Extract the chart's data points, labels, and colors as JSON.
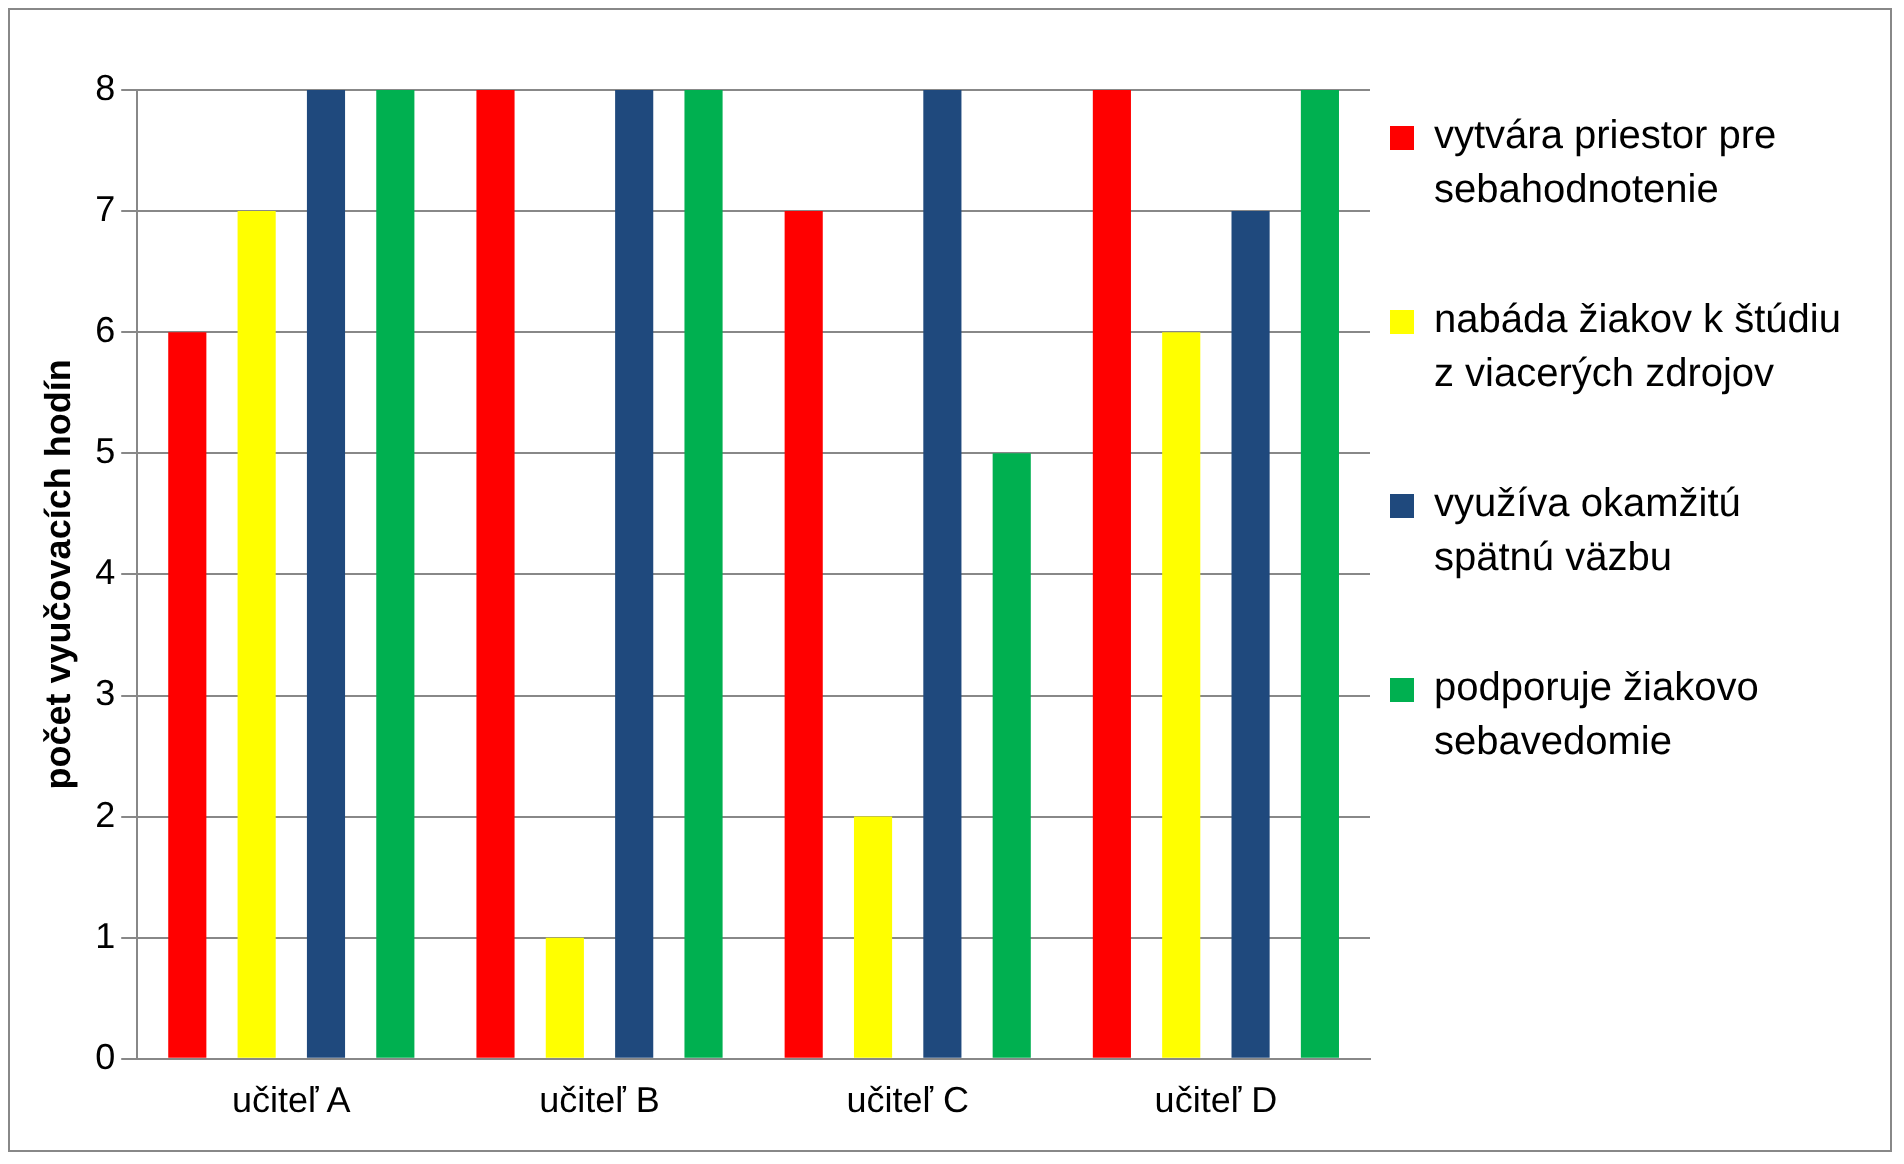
{
  "chart_data": {
    "type": "bar",
    "ylabel": "počet vyučovacích hodín",
    "categories": [
      "učiteľ A",
      "učiteľ B",
      "učiteľ C",
      "učiteľ D"
    ],
    "series": [
      {
        "name": "vytvára priestor pre sebahodnotenie",
        "color": "#ff0000",
        "values": [
          6,
          8,
          7,
          8
        ]
      },
      {
        "name": "nabáda žiakov k štúdiu z viacerých zdrojov",
        "color": "#ffff00",
        "values": [
          7,
          1,
          2,
          6
        ]
      },
      {
        "name": "využíva okamžitú spätnú väzbu",
        "color": "#1f497d",
        "values": [
          8,
          8,
          8,
          7
        ]
      },
      {
        "name": "podporuje žiakovo sebavedomie",
        "color": "#00b050",
        "values": [
          8,
          8,
          5,
          8
        ]
      }
    ],
    "ylim": [
      0,
      8
    ],
    "yticks": [
      0,
      1,
      2,
      3,
      4,
      5,
      6,
      7,
      8
    ],
    "grid": "y",
    "legend": "right"
  }
}
